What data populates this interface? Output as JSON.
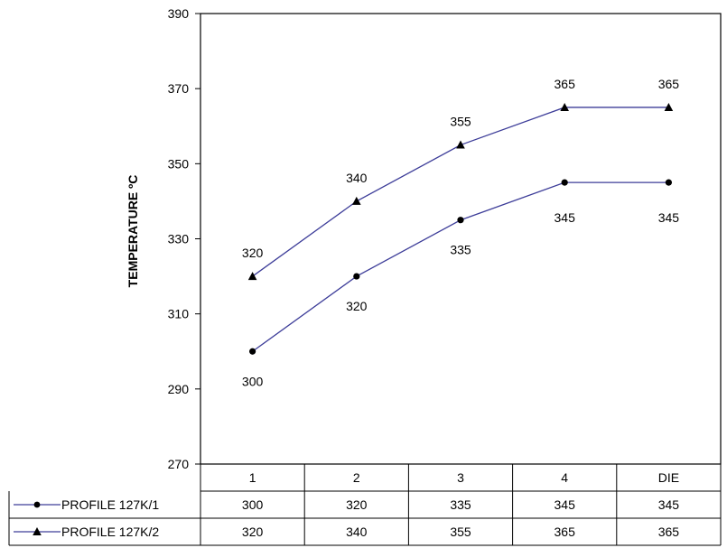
{
  "chart_data": {
    "type": "line",
    "title": "",
    "xlabel": "",
    "ylabel": "TEMPERATURE ºC",
    "ylim": [
      270,
      390
    ],
    "yticks": [
      270,
      290,
      310,
      330,
      350,
      370,
      390
    ],
    "grid": false,
    "legend": "data-table-left",
    "categories": [
      "1",
      "2",
      "3",
      "4",
      "DIE"
    ],
    "series": [
      {
        "name": "PROFILE 127K/1",
        "marker": "circle",
        "color": "#3d3d99",
        "values": [
          300,
          320,
          335,
          345,
          345
        ]
      },
      {
        "name": "PROFILE 127K/2",
        "marker": "triangle",
        "color": "#3d3d99",
        "values": [
          320,
          340,
          355,
          365,
          365
        ]
      }
    ]
  }
}
